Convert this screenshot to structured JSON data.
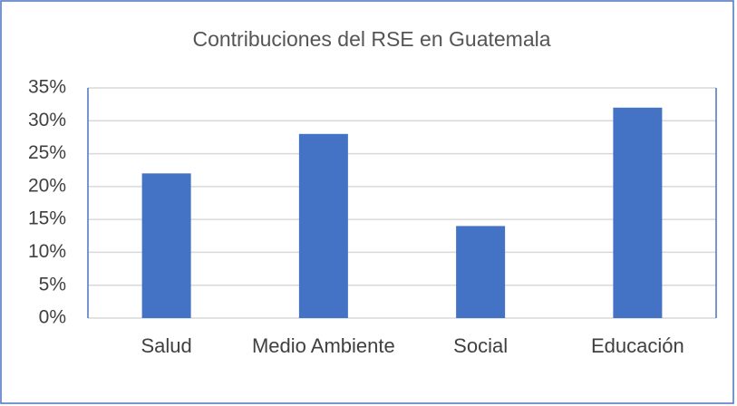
{
  "chart_data": {
    "type": "bar",
    "title": "Contribuciones del RSE en Guatemala",
    "categories": [
      "Salud",
      "Medio Ambiente",
      "Social",
      "Educación"
    ],
    "values": [
      22,
      28,
      14,
      32
    ],
    "color": "#4472c4",
    "ylim": [
      0,
      35
    ],
    "yticks": [
      {
        "value": 0,
        "label": "0%"
      },
      {
        "value": 5,
        "label": "5%"
      },
      {
        "value": 10,
        "label": "10%"
      },
      {
        "value": 15,
        "label": "15%"
      },
      {
        "value": 20,
        "label": "20%"
      },
      {
        "value": 25,
        "label": "25%"
      },
      {
        "value": 30,
        "label": "30%"
      },
      {
        "value": 35,
        "label": "35%"
      }
    ],
    "grid": true
  }
}
